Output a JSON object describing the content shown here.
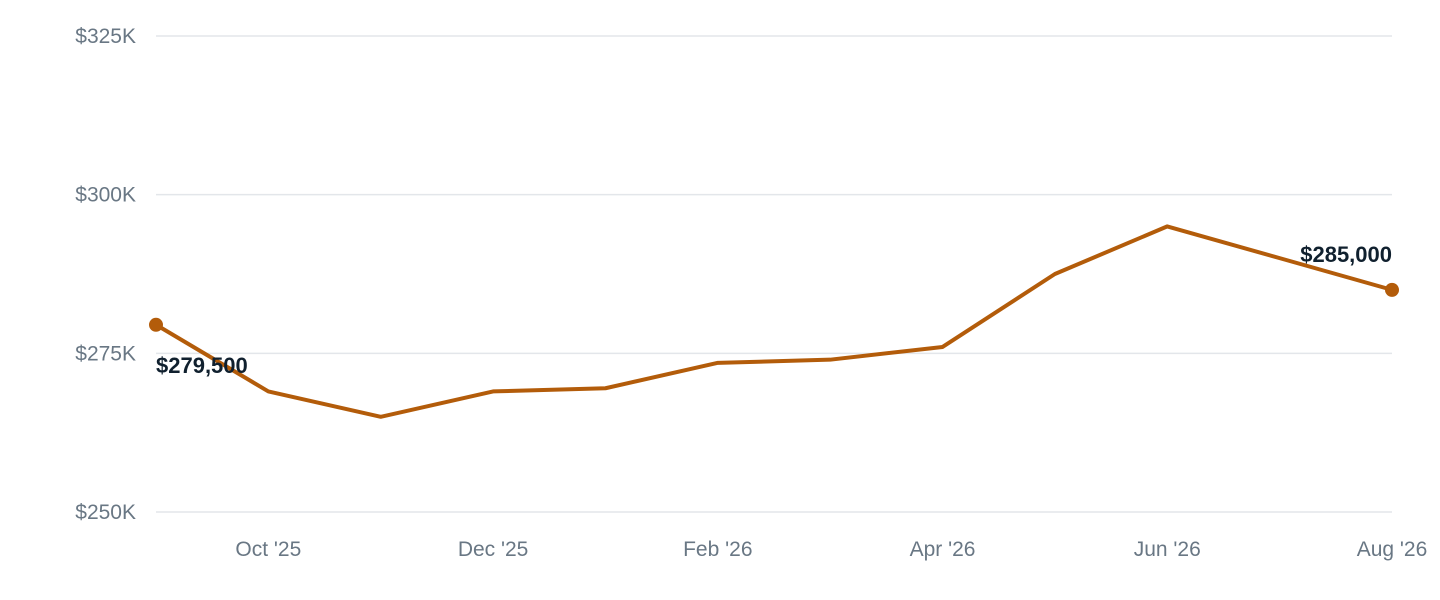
{
  "chart_data": {
    "type": "line",
    "title": "",
    "xlabel": "",
    "ylabel": "",
    "x": [
      "Sep '25",
      "Oct '25",
      "Nov '25",
      "Dec '25",
      "Jan '26",
      "Feb '26",
      "Mar '26",
      "Apr '26",
      "May '26",
      "Jun '26",
      "Jul '26",
      "Aug '26"
    ],
    "x_tick_labels": [
      "Oct '25",
      "Dec '25",
      "Feb '26",
      "Apr '26",
      "Jun '26",
      "Aug '26"
    ],
    "series": [
      {
        "values": [
          279500,
          269000,
          265000,
          269000,
          269500,
          273500,
          274000,
          276000,
          287500,
          295000,
          290000,
          285000
        ],
        "color": "#b35c0a"
      }
    ],
    "y_tick_labels": [
      "$250K",
      "$275K",
      "$300K",
      "$325K"
    ],
    "y_ticks": [
      250000,
      275000,
      300000,
      325000
    ],
    "ylim": [
      250000,
      325000
    ],
    "grid": true,
    "data_labels": [
      {
        "index": 0,
        "text": "$279,500"
      },
      {
        "index": 11,
        "text": "$285,000"
      }
    ],
    "colors": {
      "line": "#b35c0a",
      "grid": "#e3e6ea",
      "tick_text": "#697784",
      "label_text": "#10202e"
    }
  }
}
